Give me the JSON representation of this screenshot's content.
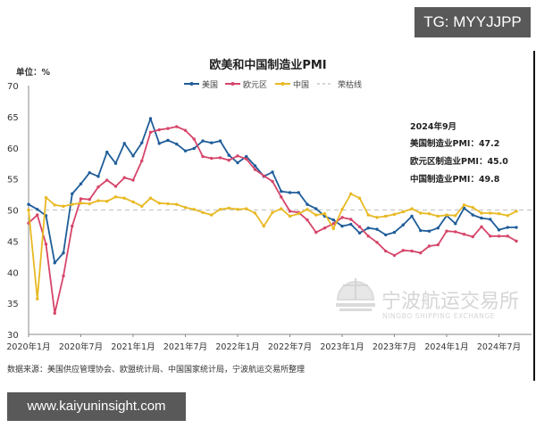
{
  "watermarks": {
    "top": "TG: MYYJJPP",
    "bottom": "www.kaiyuninsight.com"
  },
  "chart_data": {
    "type": "line",
    "title": "欧美和中国制造业PMI",
    "unit_label": "单位：%",
    "xlabel": "",
    "ylabel": "%",
    "ylim": [
      30,
      70
    ],
    "yticks": [
      30,
      35,
      40,
      45,
      50,
      55,
      60,
      65,
      70
    ],
    "xticks": [
      "2020年1月",
      "2020年7月",
      "2021年1月",
      "2021年7月",
      "2022年1月",
      "2022年7月",
      "2023年1月",
      "2023年7月",
      "2024年1月",
      "2024年7月"
    ],
    "grid": false,
    "legend_position": "top",
    "legend": [
      "美国",
      "欧元区",
      "中国",
      "荣枯线"
    ],
    "x_start": "2020-01",
    "x_end": "2024-09",
    "series": [
      {
        "name": "美国",
        "color": "#1f5d99",
        "values": [
          50.9,
          50.1,
          49.1,
          41.5,
          43.1,
          52.6,
          54.2,
          56.0,
          55.4,
          59.3,
          57.5,
          60.7,
          58.7,
          60.8,
          64.7,
          60.7,
          61.2,
          60.6,
          59.5,
          59.9,
          61.1,
          60.8,
          61.1,
          58.8,
          57.6,
          58.6,
          57.1,
          55.4,
          56.1,
          53.0,
          52.8,
          52.8,
          50.9,
          50.2,
          49.0,
          48.4,
          47.4,
          47.7,
          46.3,
          47.1,
          46.9,
          46.0,
          46.4,
          47.6,
          49.0,
          46.7,
          46.6,
          47.1,
          49.1,
          47.8,
          50.3,
          49.2,
          48.7,
          48.5,
          46.8,
          47.2,
          47.2
        ]
      },
      {
        "name": "欧元区",
        "color": "#d6456a",
        "values": [
          47.9,
          49.2,
          44.5,
          33.4,
          39.4,
          47.4,
          51.8,
          51.7,
          53.7,
          54.8,
          53.8,
          55.2,
          54.8,
          57.9,
          62.5,
          62.9,
          63.1,
          63.4,
          62.8,
          61.4,
          58.6,
          58.3,
          58.4,
          58.0,
          58.7,
          58.2,
          56.5,
          55.5,
          54.6,
          52.1,
          49.8,
          49.6,
          48.4,
          46.4,
          47.1,
          47.8,
          48.8,
          48.5,
          47.3,
          45.8,
          44.8,
          43.4,
          42.7,
          43.5,
          43.4,
          43.1,
          44.2,
          44.4,
          46.6,
          46.5,
          46.1,
          45.7,
          47.3,
          45.8,
          45.8,
          45.8,
          45.0
        ]
      },
      {
        "name": "中国",
        "color": "#e8b923",
        "values": [
          50.0,
          35.7,
          52.0,
          50.8,
          50.6,
          50.9,
          51.1,
          51.0,
          51.5,
          51.4,
          52.1,
          51.9,
          51.3,
          50.6,
          51.9,
          51.1,
          51.0,
          50.9,
          50.4,
          50.1,
          49.6,
          49.2,
          50.1,
          50.3,
          50.1,
          50.2,
          49.5,
          47.4,
          49.6,
          50.2,
          49.0,
          49.4,
          50.1,
          49.2,
          49.4,
          47.0,
          50.1,
          52.6,
          51.9,
          49.2,
          48.8,
          49.0,
          49.3,
          49.7,
          50.2,
          49.5,
          49.4,
          49.0,
          49.2,
          49.1,
          50.8,
          50.4,
          49.5,
          49.5,
          49.4,
          49.1,
          49.8
        ]
      },
      {
        "name": "荣枯线",
        "color": "#c8c8c8",
        "style": "dashed",
        "value": 50
      }
    ],
    "annotation": {
      "date": "2024年9月",
      "lines": [
        "美国制造业PMI：47.2",
        "欧元区制造业PMI：45.0",
        "中国制造业PMI：49.8"
      ]
    },
    "source": "数据来源：美国供应管理协会、欧盟统计局、中国国家统计局，宁波航运交易所整理",
    "logo": {
      "cn": "宁波航运交易所",
      "en": "NINGBO SHIPPING EXCHANGE"
    }
  }
}
